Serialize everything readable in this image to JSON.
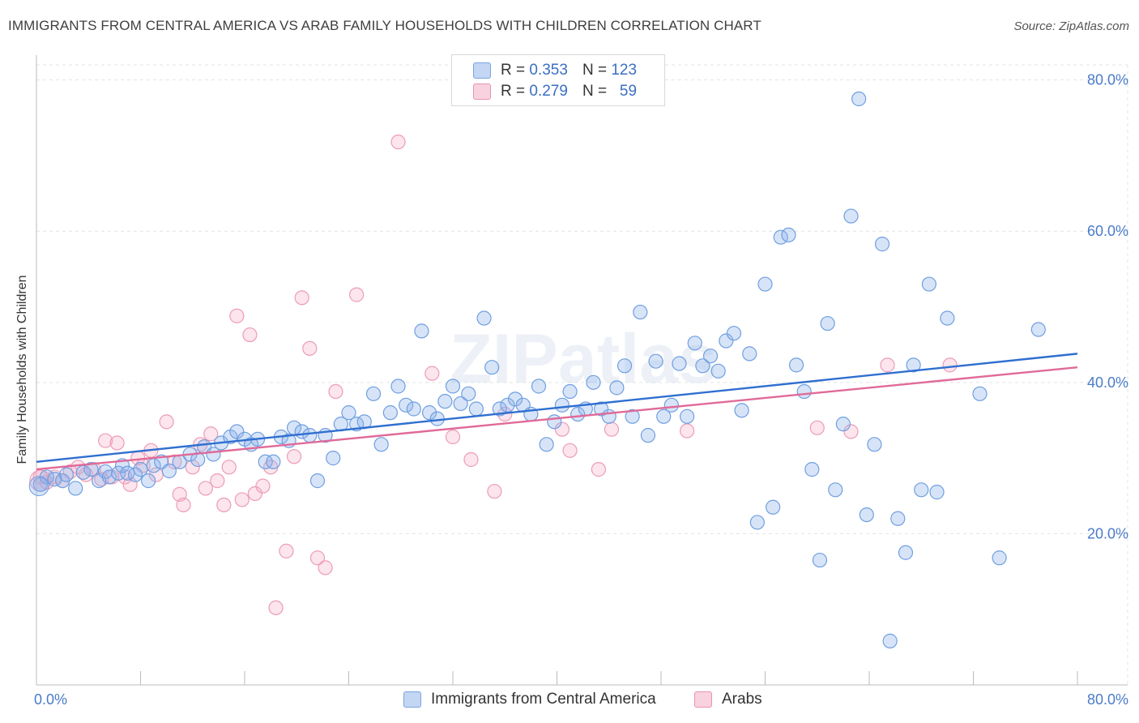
{
  "header": {
    "title": "IMMIGRANTS FROM CENTRAL AMERICA VS ARAB FAMILY HOUSEHOLDS WITH CHILDREN CORRELATION CHART",
    "source": "Source: ZipAtlas.com"
  },
  "watermark": "ZIPatlas",
  "legend": {
    "rows": [
      {
        "r_label": "R =",
        "r_value": "0.353",
        "n_label": "N =",
        "n_value": "123",
        "color": "#a9c6f0",
        "border": "#7aa3e0"
      },
      {
        "r_label": "R =",
        "r_value": "0.279",
        "n_label": "N =",
        "n_value": "59",
        "color": "#f7c0d2",
        "border": "#e993b0"
      }
    ]
  },
  "bottom_legend": {
    "series_a": "Immigrants from Central America",
    "series_b": "Arabs"
  },
  "chart_data": {
    "type": "scatter",
    "title": "IMMIGRANTS FROM CENTRAL AMERICA VS ARAB FAMILY HOUSEHOLDS WITH CHILDREN CORRELATION CHART",
    "xlabel": "",
    "ylabel": "Family Households with Children",
    "xlim": [
      0,
      80
    ],
    "ylim": [
      0,
      82
    ],
    "x_tick_labels": [
      "0.0%",
      "80.0%"
    ],
    "y_ticks": [
      20,
      40,
      60,
      80
    ],
    "y_tick_labels": [
      "20.0%",
      "40.0%",
      "60.0%",
      "80.0%"
    ],
    "grid": true,
    "series": [
      {
        "name": "Immigrants from Central America",
        "color": "#6f9fe0",
        "fill": "rgba(140,178,235,0.35)",
        "trend": {
          "x": [
            0,
            80
          ],
          "y": [
            29.5,
            43.8
          ],
          "color": "#2f6fd0"
        },
        "points": [
          [
            0.3,
            26.5
          ],
          [
            0.8,
            27.5
          ],
          [
            1.4,
            27.2
          ],
          [
            2.0,
            27.0
          ],
          [
            2.3,
            27.8
          ],
          [
            3.0,
            26.0
          ],
          [
            3.6,
            28.1
          ],
          [
            4.2,
            28.5
          ],
          [
            4.8,
            27.0
          ],
          [
            5.3,
            28.2
          ],
          [
            5.6,
            27.5
          ],
          [
            6.3,
            28.0
          ],
          [
            6.6,
            29.0
          ],
          [
            7.0,
            28.0
          ],
          [
            7.6,
            27.8
          ],
          [
            8.0,
            28.5
          ],
          [
            8.6,
            27.0
          ],
          [
            9.0,
            29.0
          ],
          [
            9.6,
            29.5
          ],
          [
            10.2,
            28.3
          ],
          [
            11.0,
            29.5
          ],
          [
            11.8,
            30.5
          ],
          [
            12.4,
            29.8
          ],
          [
            12.9,
            31.5
          ],
          [
            13.6,
            30.5
          ],
          [
            14.2,
            32.0
          ],
          [
            14.9,
            32.8
          ],
          [
            15.4,
            33.5
          ],
          [
            16.0,
            32.5
          ],
          [
            16.5,
            31.8
          ],
          [
            17.0,
            32.5
          ],
          [
            17.6,
            29.5
          ],
          [
            18.2,
            29.5
          ],
          [
            18.8,
            32.8
          ],
          [
            19.4,
            32.3
          ],
          [
            19.8,
            34.0
          ],
          [
            20.4,
            33.5
          ],
          [
            21.0,
            33.0
          ],
          [
            21.6,
            27.0
          ],
          [
            22.2,
            33.0
          ],
          [
            22.8,
            30.0
          ],
          [
            23.4,
            34.5
          ],
          [
            24.0,
            36.0
          ],
          [
            24.6,
            34.5
          ],
          [
            25.2,
            34.8
          ],
          [
            25.9,
            38.5
          ],
          [
            26.5,
            31.8
          ],
          [
            27.2,
            36.0
          ],
          [
            27.8,
            39.5
          ],
          [
            28.4,
            37.0
          ],
          [
            29.0,
            36.5
          ],
          [
            29.6,
            46.8
          ],
          [
            30.2,
            36.0
          ],
          [
            30.8,
            35.2
          ],
          [
            31.4,
            37.5
          ],
          [
            32.0,
            39.5
          ],
          [
            32.6,
            37.2
          ],
          [
            33.2,
            38.5
          ],
          [
            33.8,
            36.5
          ],
          [
            34.4,
            48.5
          ],
          [
            35.0,
            42.0
          ],
          [
            35.6,
            36.5
          ],
          [
            36.2,
            37.0
          ],
          [
            36.8,
            37.8
          ],
          [
            37.4,
            37.0
          ],
          [
            38.0,
            35.8
          ],
          [
            38.6,
            39.5
          ],
          [
            39.2,
            31.8
          ],
          [
            39.8,
            34.8
          ],
          [
            40.4,
            37.0
          ],
          [
            41.0,
            38.8
          ],
          [
            41.6,
            35.8
          ],
          [
            42.2,
            36.5
          ],
          [
            42.8,
            40.0
          ],
          [
            43.4,
            36.5
          ],
          [
            44.0,
            35.5
          ],
          [
            44.6,
            39.3
          ],
          [
            45.2,
            42.2
          ],
          [
            45.8,
            35.5
          ],
          [
            46.4,
            49.3
          ],
          [
            47.0,
            33.0
          ],
          [
            47.6,
            42.8
          ],
          [
            48.2,
            35.5
          ],
          [
            48.8,
            37.0
          ],
          [
            49.4,
            42.5
          ],
          [
            50.0,
            35.5
          ],
          [
            50.6,
            45.2
          ],
          [
            51.2,
            42.2
          ],
          [
            51.8,
            43.5
          ],
          [
            52.4,
            41.5
          ],
          [
            53.0,
            45.5
          ],
          [
            53.6,
            46.5
          ],
          [
            54.2,
            36.3
          ],
          [
            54.8,
            43.8
          ],
          [
            55.4,
            21.5
          ],
          [
            56.0,
            53.0
          ],
          [
            56.6,
            23.5
          ],
          [
            57.2,
            59.2
          ],
          [
            57.8,
            59.5
          ],
          [
            58.4,
            42.3
          ],
          [
            59.0,
            38.8
          ],
          [
            59.6,
            28.5
          ],
          [
            60.2,
            16.5
          ],
          [
            60.8,
            47.8
          ],
          [
            61.4,
            25.8
          ],
          [
            62.0,
            34.5
          ],
          [
            62.6,
            62.0
          ],
          [
            63.2,
            77.5
          ],
          [
            63.8,
            22.5
          ],
          [
            64.4,
            31.8
          ],
          [
            65.0,
            58.3
          ],
          [
            65.6,
            5.8
          ],
          [
            66.2,
            22.0
          ],
          [
            66.8,
            17.5
          ],
          [
            67.4,
            42.3
          ],
          [
            68.0,
            25.8
          ],
          [
            68.6,
            53.0
          ],
          [
            69.2,
            25.5
          ],
          [
            70.0,
            48.5
          ],
          [
            72.5,
            38.5
          ],
          [
            74.0,
            16.8
          ],
          [
            77.0,
            47.0
          ]
        ]
      },
      {
        "name": "Arabs",
        "color": "#ec9cb7",
        "fill": "rgba(245,170,195,0.30)",
        "trend": {
          "x": [
            0,
            80
          ],
          "y": [
            28.5,
            42.0
          ],
          "color": "#e06a98"
        },
        "points": [
          [
            0.3,
            27.5
          ],
          [
            0.8,
            26.8
          ],
          [
            1.4,
            27.5
          ],
          [
            2.0,
            27.0
          ],
          [
            2.6,
            28.2
          ],
          [
            3.2,
            28.8
          ],
          [
            3.8,
            27.8
          ],
          [
            4.4,
            28.5
          ],
          [
            5.0,
            27.2
          ],
          [
            5.3,
            32.3
          ],
          [
            5.8,
            27.5
          ],
          [
            6.2,
            32.0
          ],
          [
            6.8,
            27.5
          ],
          [
            7.2,
            26.5
          ],
          [
            7.8,
            30.0
          ],
          [
            8.2,
            29.0
          ],
          [
            8.8,
            31.0
          ],
          [
            9.2,
            27.8
          ],
          [
            10.0,
            34.8
          ],
          [
            10.6,
            29.5
          ],
          [
            11.0,
            25.2
          ],
          [
            11.3,
            23.8
          ],
          [
            12.0,
            28.8
          ],
          [
            12.6,
            31.8
          ],
          [
            13.0,
            26.0
          ],
          [
            13.4,
            33.2
          ],
          [
            13.9,
            27.0
          ],
          [
            14.4,
            23.8
          ],
          [
            14.8,
            28.8
          ],
          [
            15.4,
            48.8
          ],
          [
            15.8,
            24.5
          ],
          [
            16.4,
            46.3
          ],
          [
            16.8,
            25.3
          ],
          [
            17.4,
            26.3
          ],
          [
            18.0,
            28.8
          ],
          [
            18.4,
            10.2
          ],
          [
            19.2,
            17.7
          ],
          [
            19.8,
            30.2
          ],
          [
            20.4,
            51.2
          ],
          [
            21.0,
            44.5
          ],
          [
            21.6,
            16.8
          ],
          [
            22.2,
            15.5
          ],
          [
            23.0,
            38.8
          ],
          [
            24.6,
            51.6
          ],
          [
            27.8,
            71.8
          ],
          [
            30.4,
            41.2
          ],
          [
            32.0,
            32.8
          ],
          [
            33.4,
            29.8
          ],
          [
            35.2,
            25.6
          ],
          [
            36.0,
            35.8
          ],
          [
            40.4,
            33.8
          ],
          [
            41.0,
            31.0
          ],
          [
            43.2,
            28.5
          ],
          [
            44.2,
            33.8
          ],
          [
            50.0,
            33.6
          ],
          [
            60.0,
            34.0
          ],
          [
            62.6,
            33.5
          ],
          [
            65.4,
            42.3
          ],
          [
            70.2,
            42.3
          ]
        ]
      }
    ]
  }
}
